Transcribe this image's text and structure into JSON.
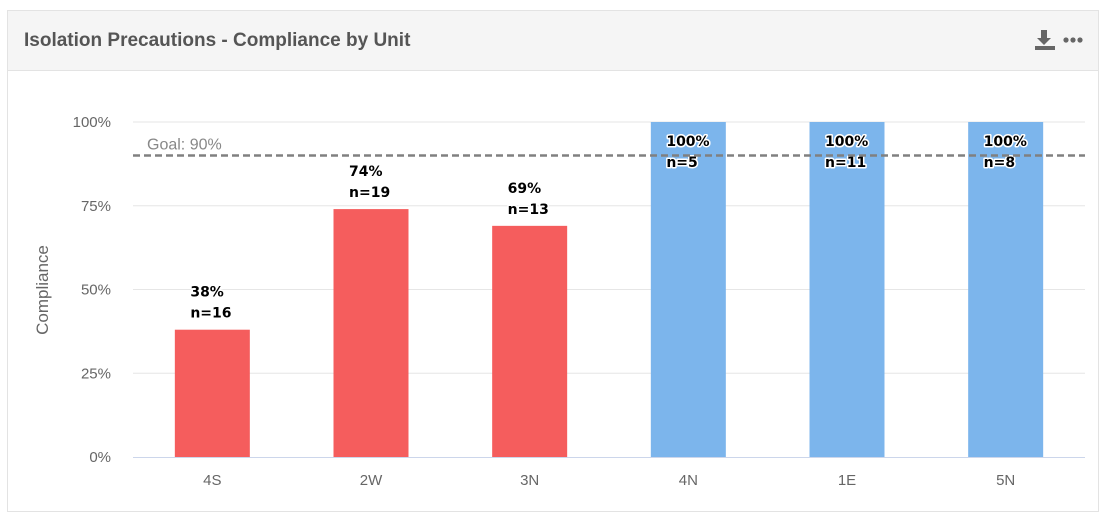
{
  "header": {
    "title": "Isolation Precautions - Compliance by Unit",
    "download_icon": "download-icon",
    "more_icon": "more-options-icon"
  },
  "chart_data": {
    "type": "bar",
    "categories": [
      "4S",
      "2W",
      "3N",
      "4N",
      "1E",
      "5N"
    ],
    "values": [
      38,
      74,
      69,
      100,
      100,
      100
    ],
    "n": [
      16,
      19,
      13,
      5,
      11,
      8
    ],
    "data_labels": [
      "38%",
      "74%",
      "69%",
      "100%",
      "100%",
      "100%"
    ],
    "n_labels": [
      "n=16",
      "n=19",
      "n=13",
      "n=5",
      "n=11",
      "n=8"
    ],
    "ylabel": "Compliance",
    "ylim": [
      0,
      100
    ],
    "yticks": [
      0,
      25,
      50,
      75,
      100
    ],
    "ytick_labels": [
      "0%",
      "25%",
      "50%",
      "75%",
      "100%"
    ],
    "goal": {
      "value": 90,
      "label": "Goal: 90%"
    },
    "colors": {
      "below_goal": "#f55d5d",
      "at_or_above_goal": "#7cb5ec",
      "goal_line": "#808080",
      "grid": "#e6e6e6"
    },
    "grid": true
  }
}
